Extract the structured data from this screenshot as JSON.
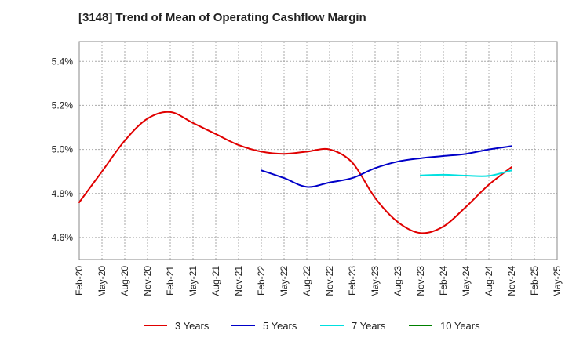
{
  "chart_data": {
    "type": "line",
    "title": "[3148]  Trend of Mean of Operating Cashflow Margin",
    "xlabel": "",
    "ylabel": "",
    "x_ticks": [
      "Feb-20",
      "May-20",
      "Aug-20",
      "Nov-20",
      "Feb-21",
      "May-21",
      "Aug-21",
      "Nov-21",
      "Feb-22",
      "May-22",
      "Aug-22",
      "Nov-22",
      "Feb-23",
      "May-23",
      "Aug-23",
      "Nov-23",
      "Feb-24",
      "May-24",
      "Aug-24",
      "Nov-24",
      "Feb-25",
      "May-25"
    ],
    "y_ticks": [
      "4.6%",
      "4.8%",
      "5.0%",
      "5.2%",
      "5.4%"
    ],
    "y_tick_values": [
      4.6,
      4.8,
      5.0,
      5.2,
      5.4
    ],
    "ylim": [
      4.5,
      5.49
    ],
    "grid": true,
    "legend_position": "bottom",
    "series": [
      {
        "name": "3 Years",
        "color": "#e00000",
        "points": [
          [
            "Feb-20",
            4.76
          ],
          [
            "May-20",
            4.9
          ],
          [
            "Aug-20",
            5.04
          ],
          [
            "Nov-20",
            5.14
          ],
          [
            "Feb-21",
            5.17
          ],
          [
            "May-21",
            5.12
          ],
          [
            "Aug-21",
            5.07
          ],
          [
            "Nov-21",
            5.02
          ],
          [
            "Feb-22",
            4.99
          ],
          [
            "May-22",
            4.98
          ],
          [
            "Aug-22",
            4.99
          ],
          [
            "Nov-22",
            5.0
          ],
          [
            "Feb-23",
            4.94
          ],
          [
            "May-23",
            4.78
          ],
          [
            "Aug-23",
            4.67
          ],
          [
            "Nov-23",
            4.62
          ],
          [
            "Feb-24",
            4.65
          ],
          [
            "May-24",
            4.74
          ],
          [
            "Aug-24",
            4.84
          ],
          [
            "Nov-24",
            4.92
          ]
        ]
      },
      {
        "name": "5 Years",
        "color": "#0000c8",
        "points": [
          [
            "Feb-22",
            4.905
          ],
          [
            "May-22",
            4.87
          ],
          [
            "Aug-22",
            4.83
          ],
          [
            "Nov-22",
            4.85
          ],
          [
            "Feb-23",
            4.87
          ],
          [
            "May-23",
            4.915
          ],
          [
            "Aug-23",
            4.945
          ],
          [
            "Nov-23",
            4.96
          ],
          [
            "Feb-24",
            4.97
          ],
          [
            "May-24",
            4.98
          ],
          [
            "Aug-24",
            5.0
          ],
          [
            "Nov-24",
            5.015
          ]
        ]
      },
      {
        "name": "7 Years",
        "color": "#00e0e0",
        "points": [
          [
            "Nov-23",
            4.882
          ],
          [
            "Feb-24",
            4.885
          ],
          [
            "May-24",
            4.881
          ],
          [
            "Aug-24",
            4.88
          ],
          [
            "Nov-24",
            4.905
          ]
        ]
      },
      {
        "name": "10 Years",
        "color": "#008000",
        "points": []
      }
    ]
  }
}
